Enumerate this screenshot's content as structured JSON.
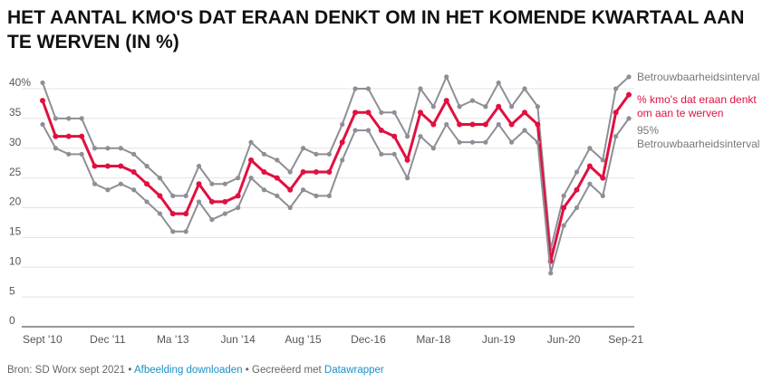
{
  "chart_data": {
    "type": "line",
    "title": "HET AANTAL KMO'S DAT ERAAN DENKT OM IN HET KOMENDE KWARTAAL AAN TE WERVEN (IN %)",
    "categories": [
      "Sept '10",
      null,
      null,
      null,
      null,
      "Dec '11",
      null,
      null,
      null,
      null,
      "Ma '13",
      null,
      null,
      null,
      null,
      "Jun '14",
      null,
      null,
      null,
      null,
      "Aug '15",
      null,
      null,
      null,
      null,
      "Dec-16",
      null,
      null,
      null,
      null,
      "Mar-18",
      null,
      null,
      null,
      null,
      "Jun-19",
      null,
      null,
      null,
      null,
      "Jun-20",
      null,
      null,
      null,
      null,
      "Sep-21"
    ],
    "series": [
      {
        "name": "Betrouwbaarheidsinterval",
        "color": "#8e8e96",
        "values": [
          41,
          35,
          35,
          35,
          30,
          30,
          30,
          29,
          27,
          25,
          22,
          22,
          27,
          24,
          24,
          25,
          31,
          29,
          28,
          26,
          30,
          29,
          29,
          34,
          40,
          40,
          36,
          36,
          32,
          40,
          37,
          42,
          37,
          38,
          37,
          41,
          37,
          40,
          37,
          13,
          22,
          26,
          30,
          28,
          40,
          42
        ]
      },
      {
        "name": "% kmo's dat eraan denkt om aan te werven",
        "color": "#e0103f",
        "values": [
          38,
          32,
          32,
          32,
          27,
          27,
          27,
          26,
          24,
          22,
          19,
          19,
          24,
          21,
          21,
          22,
          28,
          26,
          25,
          23,
          26,
          26,
          26,
          31,
          36,
          36,
          33,
          32,
          28,
          36,
          34,
          38,
          34,
          34,
          34,
          37,
          34,
          36,
          34,
          11,
          20,
          23,
          27,
          25,
          36,
          39
        ]
      },
      {
        "name": "95% Betrouwbaarheidsinterval",
        "color": "#8e8e96",
        "values": [
          34,
          30,
          29,
          29,
          24,
          23,
          24,
          23,
          21,
          19,
          16,
          16,
          21,
          18,
          19,
          20,
          25,
          23,
          22,
          20,
          23,
          22,
          22,
          28,
          33,
          33,
          29,
          29,
          25,
          32,
          30,
          34,
          31,
          31,
          31,
          34,
          31,
          33,
          31,
          9,
          17,
          20,
          24,
          22,
          32,
          35
        ]
      }
    ],
    "ylim": [
      0,
      40
    ],
    "yticks": [
      0,
      5,
      10,
      15,
      20,
      25,
      30,
      35,
      {
        "value": 40,
        "label": "40%"
      }
    ],
    "grid": true,
    "footer": {
      "source": "Bron: SD Worx sept 2021",
      "separator": "•",
      "download": "Afbeelding downloaden",
      "created": "Gecreëerd met",
      "tool": "Datawrapper"
    }
  }
}
